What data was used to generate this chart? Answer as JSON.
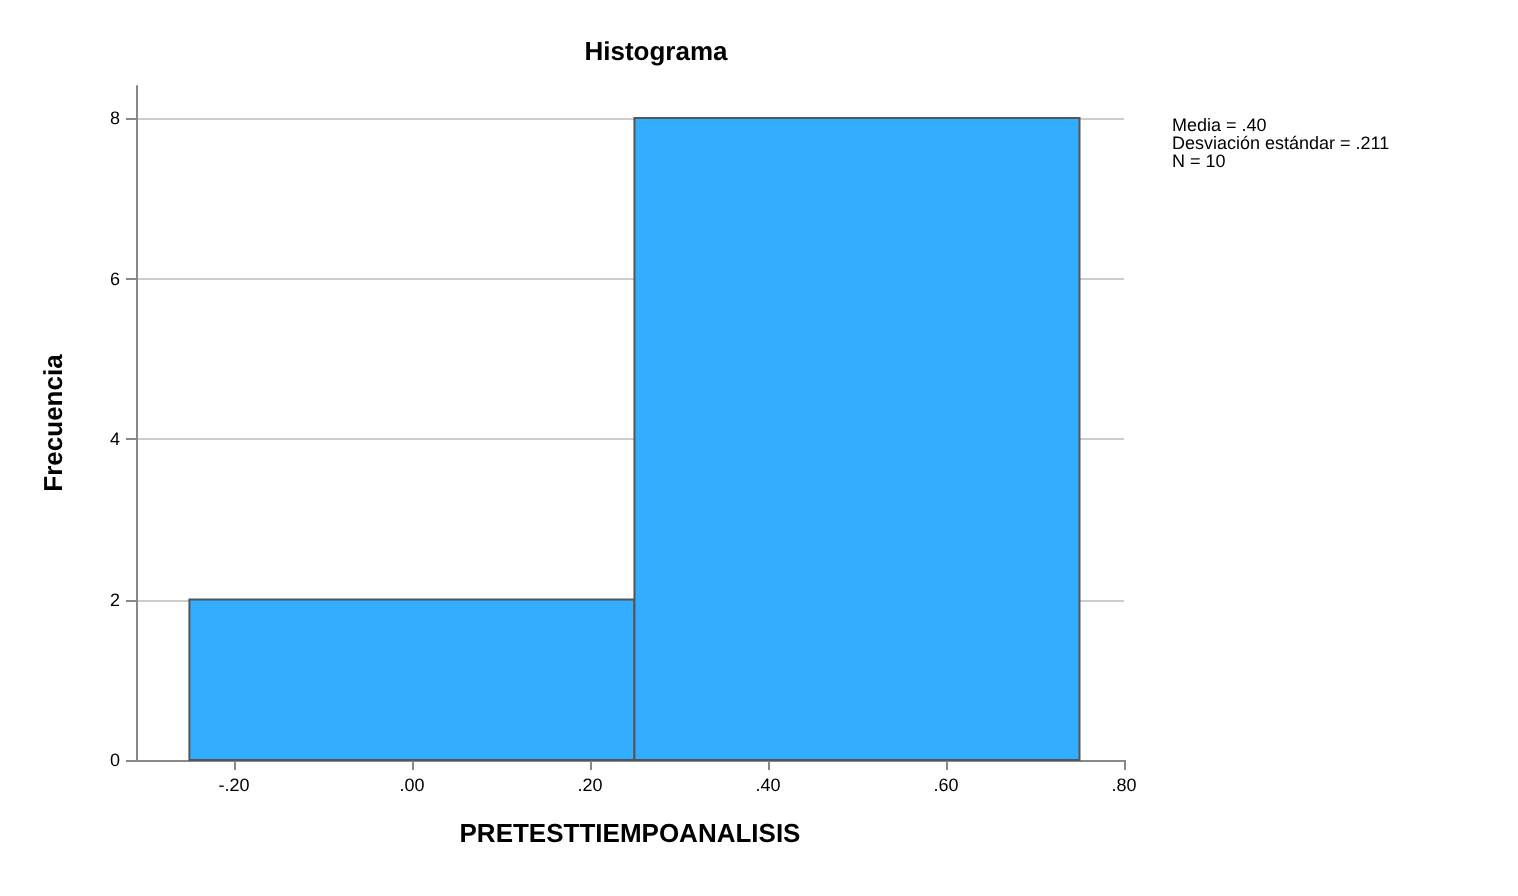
{
  "chart_data": {
    "type": "histogram",
    "title": "Histograma",
    "xlabel": "PRETESTTIEMPOANALISIS",
    "ylabel": "Frecuencia",
    "bins": [
      -0.25,
      0.25,
      0.75
    ],
    "values": [
      2,
      8
    ],
    "color": "#33adff",
    "xlim": [
      -0.31,
      0.8
    ],
    "xticks": [
      {
        "value": -0.2,
        "label": "-.20"
      },
      {
        "value": 0,
        "label": ".00"
      },
      {
        "value": 0.2,
        "label": ".20"
      },
      {
        "value": 0.4,
        "label": ".40"
      },
      {
        "value": 0.6,
        "label": ".60"
      },
      {
        "value": 0.8,
        "label": ".80"
      }
    ],
    "ylim": [
      0,
      8.4
    ],
    "yticks": [
      0,
      2,
      4,
      6,
      8
    ],
    "grid": "y",
    "annotations": [
      "Media = .40",
      "Desviación estándar = .211",
      "N = 10"
    ]
  }
}
